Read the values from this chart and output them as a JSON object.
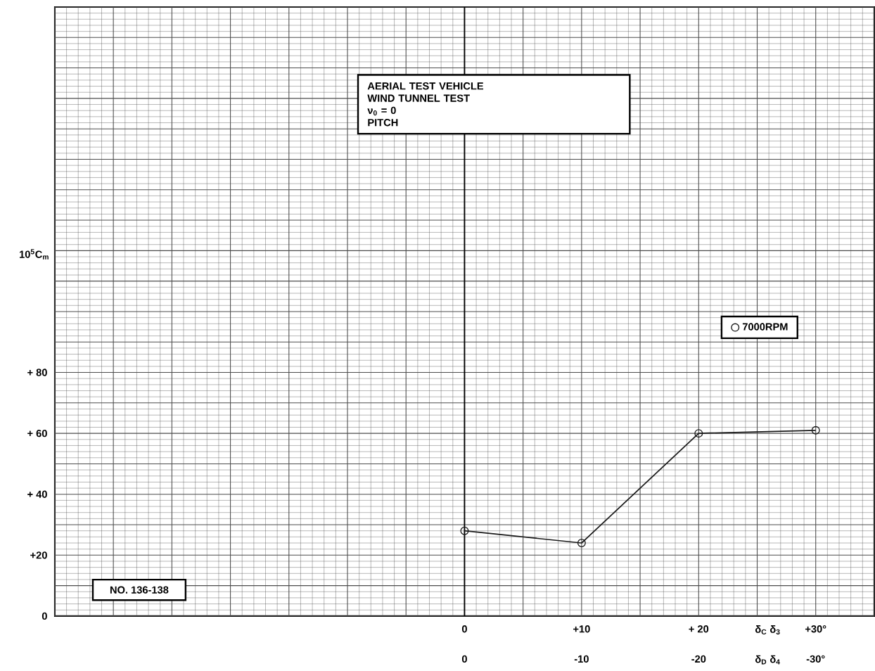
{
  "chart_data": {
    "type": "line",
    "title": "AERIAL TEST VEHICLE",
    "subtitle": "WIND TUNNEL TEST",
    "annotations": [
      "NO. 136-138",
      "ν$_{0}$ = 0",
      "PITCH"
    ],
    "xlabel": "δ$_{C}$  δ$_{3}$",
    "x2label": "δ$_{D}$  δ$_{4}$",
    "ylabel": "10$^{5}$C$_{m}$",
    "x": [
      0,
      10,
      20,
      30
    ],
    "series": [
      {
        "name": "7000RPM",
        "color": "#1a1a1a",
        "values": [
          28,
          24,
          60,
          61
        ]
      }
    ],
    "xlim": [
      -35,
      35
    ],
    "ylim": [
      0,
      200
    ],
    "xticks": [
      {
        "value": 0,
        "label": "0"
      },
      {
        "value": 10,
        "label": "+10"
      },
      {
        "value": 20,
        "label": "+ 20"
      },
      {
        "value": 30,
        "label": "+30°"
      }
    ],
    "x2lim": [
      35,
      -35
    ],
    "x2ticks": [
      0,
      {
        "value": -10,
        "label": "-10"
      },
      {
        "value": -20,
        "label": "-20"
      },
      {
        "value": -30,
        "label": "-30°"
      }
    ],
    "yticks": [
      0,
      {
        "value": 20,
        "label": "+20"
      },
      {
        "value": 40,
        "label": "+ 40"
      },
      {
        "value": 60,
        "label": "+ 60"
      },
      {
        "value": 80,
        "label": "+ 80"
      }
    ],
    "ref_lines": [
      {
        "axis": "x",
        "value": 0
      }
    ],
    "grid": true,
    "legend": "right",
    "marker": "circle",
    "line_style": "solid"
  }
}
